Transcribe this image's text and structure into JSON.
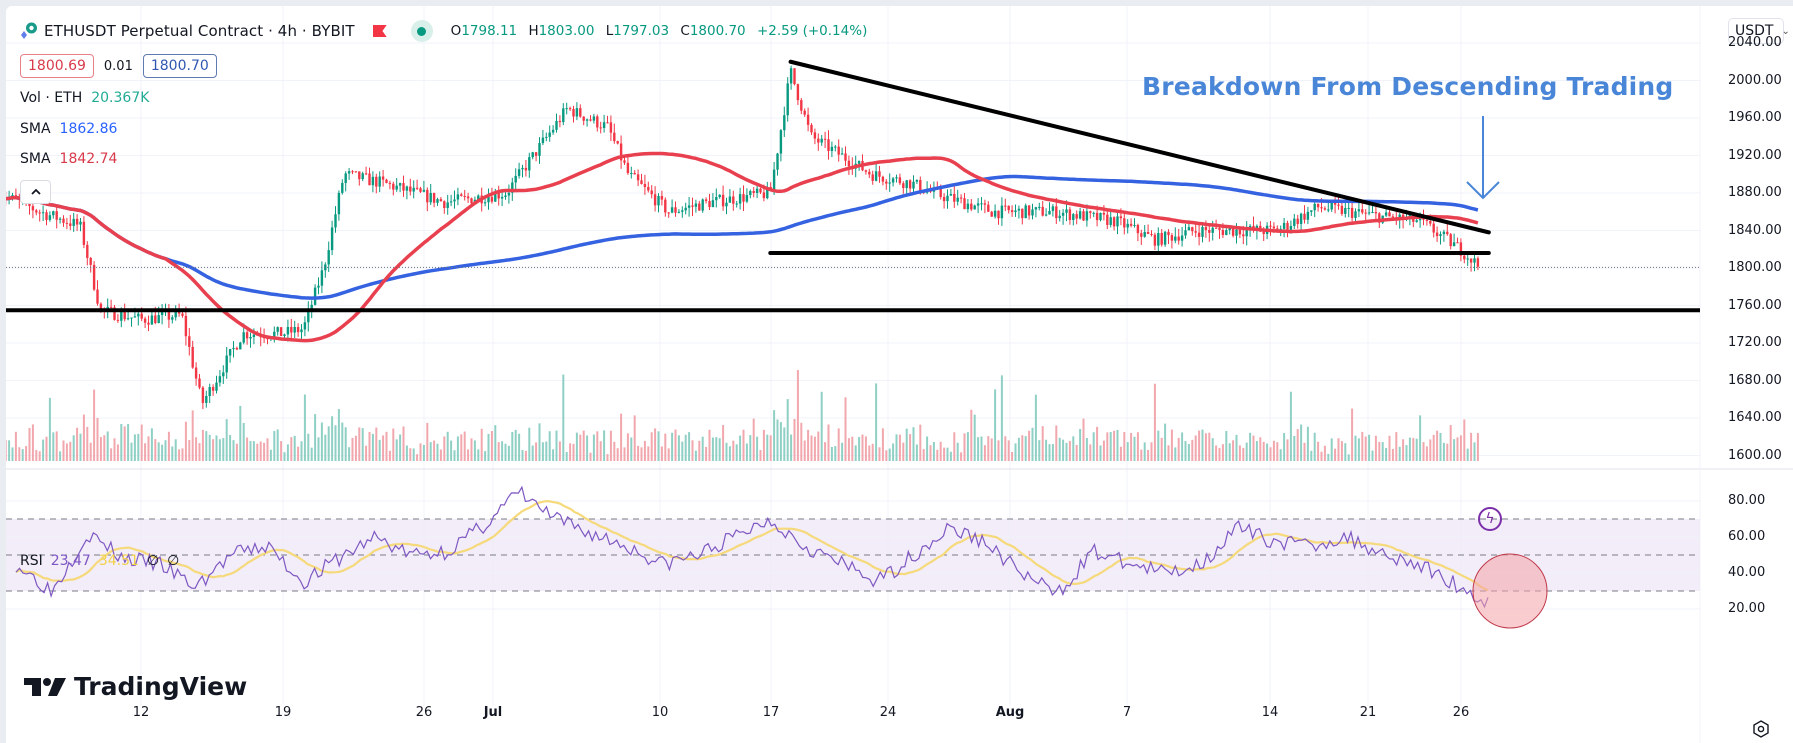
{
  "header": {
    "symbol_title": "ETHUSDT Perpetual Contract · 4h · BYBIT",
    "ohlc": {
      "open_label": "O",
      "open": "1798.11",
      "high_label": "H",
      "high": "1803.00",
      "low_label": "L",
      "low": "1797.03",
      "close_label": "C",
      "close": "1800.70",
      "change": "+2.59 (+0.14%)"
    },
    "bid": "1800.69",
    "spread": "0.01",
    "ask": "1800.70"
  },
  "legend": {
    "volume": {
      "label": "Vol · ETH",
      "value": "20.367K",
      "color": "#22ab94"
    },
    "sma_slow": {
      "label": "SMA",
      "value": "1862.86",
      "color": "#2962ff"
    },
    "sma_fast": {
      "label": "SMA",
      "value": "1842.74",
      "color": "#f23645"
    }
  },
  "rsi_legend": {
    "label": "RSI",
    "rsi": "23.47",
    "ma": "34.51",
    "z1": "∅",
    "z2": "∅"
  },
  "currency_selector": {
    "value": "USDT"
  },
  "annotation": {
    "text": "Breakdown From Descending Trading",
    "color": "#4a86d8"
  },
  "watermark": {
    "text": "TradingView"
  },
  "icons": {
    "collapse": "chevron-up-icon",
    "flag": "flag-icon",
    "live": "market-open-dot-icon",
    "bolt": "lightning-icon",
    "settings": "settings-icon",
    "currency_chevron": "chevron-down-icon"
  },
  "colors": {
    "up": "#089981",
    "down": "#f23645",
    "sma_fast": "#e8404e",
    "sma_slow": "#3462e0",
    "rsi": "#7e57c2",
    "rsi_ma": "#f5d97a",
    "trendline": "#000000",
    "annotation": "#4a86d8"
  },
  "chart_data": [
    {
      "type": "line",
      "title": "ETHUSDT Perpetual Contract · 4h · BYBIT",
      "xlabel": "",
      "ylabel": "USDT",
      "price_axis_ticks": [
        "2040.00",
        "2000.00",
        "1960.00",
        "1920.00",
        "1880.00",
        "1840.00",
        "1800.00",
        "1760.00",
        "1720.00",
        "1680.00",
        "1640.00",
        "1600.00"
      ],
      "ylim": [
        1595,
        2045
      ],
      "x_tick_labels": [
        "12",
        "19",
        "26",
        "Jul",
        "10",
        "17",
        "24",
        "Aug",
        "7",
        "14",
        "21",
        "26"
      ],
      "last_price": 1800.7,
      "approx_close_path": {
        "x": [
          "Jun 5",
          "Jun 7",
          "Jun 9",
          "Jun 10",
          "Jun 12",
          "Jun 14",
          "Jun 15",
          "Jun 17",
          "Jun 19",
          "Jun 20",
          "Jun 21",
          "Jun 22",
          "Jun 24",
          "Jun 27",
          "Jun 30",
          "Jul 1",
          "Jul 3",
          "Jul 5",
          "Jul 6",
          "Jul 8",
          "Jul 10",
          "Jul 13",
          "Jul 14",
          "Jul 15",
          "Jul 18",
          "Jul 20",
          "Jul 21",
          "Jul 24",
          "Jul 27",
          "Jul 30",
          "Aug 1",
          "Aug 3",
          "Aug 7",
          "Aug 9",
          "Aug 12",
          "Aug 14",
          "Aug 16",
          "Aug 17"
        ],
        "close": [
          1880,
          1860,
          1845,
          1755,
          1745,
          1750,
          1655,
          1730,
          1730,
          1735,
          1800,
          1900,
          1890,
          1870,
          1880,
          1910,
          1970,
          1950,
          1900,
          1860,
          1870,
          1880,
          2010,
          1940,
          1900,
          1890,
          1880,
          1860,
          1860,
          1850,
          1830,
          1840,
          1840,
          1865,
          1855,
          1850,
          1820,
          1800
        ]
      },
      "series": [
        {
          "name": "SMA (fast)",
          "last": 1842.74,
          "color": "#f23645"
        },
        {
          "name": "SMA (slow)",
          "last": 1862.86,
          "color": "#2962ff"
        }
      ],
      "annotations": [
        {
          "type": "descending_trendline",
          "from": [
            "Jul 14",
            2020
          ],
          "to": [
            "Aug 17",
            1838
          ]
        },
        {
          "type": "horizontal_support",
          "from": [
            "Jul 13",
            1816
          ],
          "to": [
            "Aug 17",
            1816
          ]
        },
        {
          "type": "horizontal_support",
          "from": [
            "Jun 5",
            1755
          ],
          "to": [
            "Aug 18",
            1755
          ]
        },
        {
          "type": "text",
          "text": "Breakdown From Descending Trading"
        },
        {
          "type": "arrow_down",
          "at": [
            "Aug 16",
            1890
          ]
        }
      ]
    },
    {
      "type": "bar",
      "title": "Vol · ETH",
      "last": "20.367K",
      "note": "volume histogram, green = up candle, red = down candle"
    },
    {
      "type": "line",
      "title": "RSI",
      "y_ticks": [
        "80.00",
        "60.00",
        "40.00",
        "20.00"
      ],
      "ylim": [
        15,
        90
      ],
      "bands": {
        "upper": 70,
        "middle": 50,
        "lower": 30
      },
      "series": [
        {
          "name": "RSI",
          "last": 23.47,
          "color": "#7e57c2",
          "approx_values": [
            45,
            30,
            62,
            48,
            45,
            32,
            50,
            55,
            35,
            48,
            60,
            50,
            52,
            66,
            85,
            70,
            62,
            55,
            45,
            50,
            60,
            70,
            55,
            45,
            35,
            50,
            65,
            57,
            40,
            28,
            52,
            45,
            40,
            45,
            65,
            58,
            55,
            60,
            52,
            45,
            35,
            23
          ]
        },
        {
          "name": "RSI MA",
          "last": 34.51,
          "color": "#f5d97a"
        }
      ],
      "highlight_circle": {
        "center_x": "Aug 16",
        "center_rsi": 30
      }
    }
  ]
}
